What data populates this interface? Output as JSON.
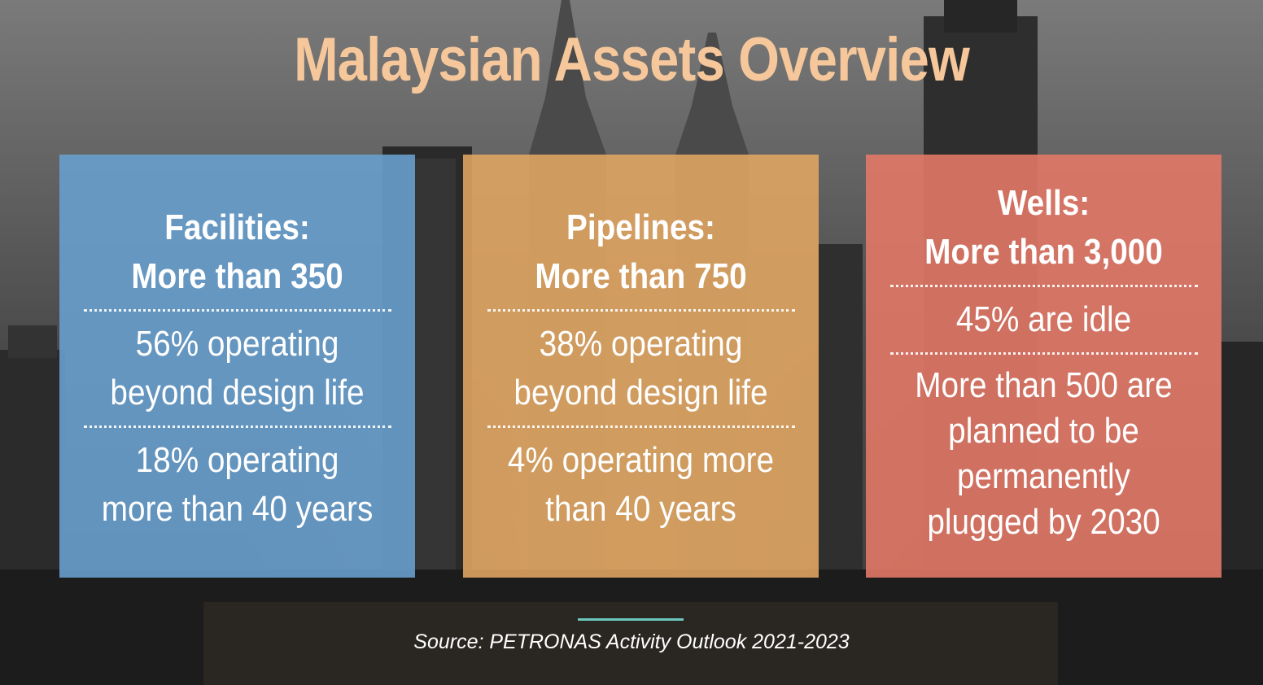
{
  "title": "Malaysian Assets Overview",
  "panels": [
    {
      "heading_1": "Facilities:",
      "heading_2": "More than 350",
      "stat_1": [
        "56% operating",
        "beyond design life"
      ],
      "stat_2": [
        "18% operating",
        "more than 40 years"
      ],
      "color": "#689ecd"
    },
    {
      "heading_1": "Pipelines:",
      "heading_2": "More than 750",
      "stat_1": [
        "38% operating",
        "beyond design life"
      ],
      "stat_2": [
        "4% operating more",
        "than 40 years"
      ],
      "color": "#e2a662"
    },
    {
      "heading_1": "Wells:",
      "heading_2": "More than 3,000",
      "stat_1": [
        "45% are idle"
      ],
      "stat_2": [
        "More than 500 are",
        "planned to be",
        "permanently",
        "plugged by 2030"
      ],
      "color": "#e17866"
    }
  ],
  "source": "Source: PETRONAS Activity Outlook 2021-2023",
  "colors": {
    "title": "#f5c79a",
    "source_accent": "#6cc7bd"
  }
}
